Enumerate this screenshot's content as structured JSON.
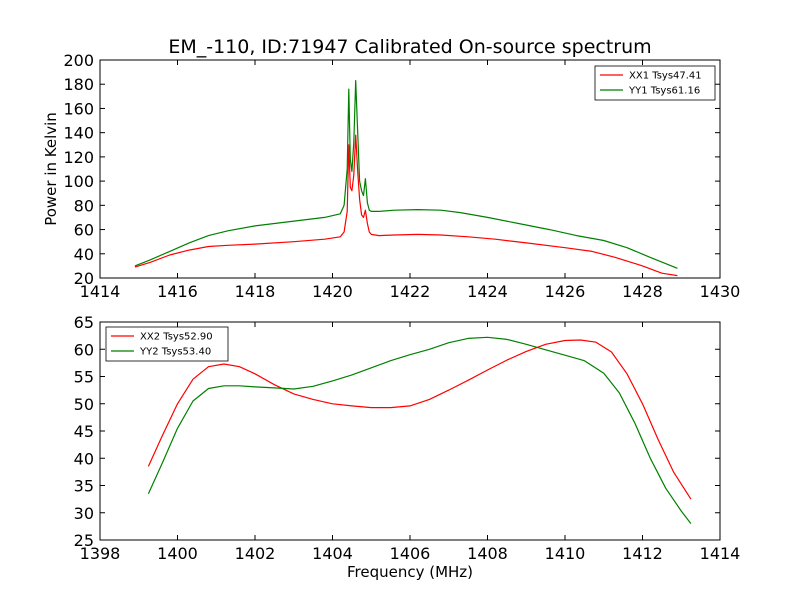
{
  "title": "EM_-110, ID:71947 Calibrated On-source spectrum",
  "colors": {
    "xx": "#ff0000",
    "yy": "#008000",
    "axes": "#000000",
    "background": "#ffffff"
  },
  "chart_data": [
    {
      "type": "line",
      "panel": "top",
      "ylabel": "Power in Kelvin",
      "xlabel": "",
      "xlim": [
        1414,
        1430
      ],
      "ylim": [
        20,
        200
      ],
      "xticks": [
        1414,
        1416,
        1418,
        1420,
        1422,
        1424,
        1426,
        1428,
        1430
      ],
      "yticks": [
        20,
        40,
        60,
        80,
        100,
        120,
        140,
        160,
        180,
        200
      ],
      "xtick_labels": [
        "1414",
        "1416",
        "1418",
        "1420",
        "1422",
        "1424",
        "1426",
        "1428",
        "1430"
      ],
      "ytick_labels": [
        "20",
        "40",
        "60",
        "80",
        "100",
        "120",
        "140",
        "160",
        "180",
        "200"
      ],
      "legend": "top-right",
      "grid": false,
      "series": [
        {
          "name": "XX1 Tsys47.41",
          "color": "#ff0000",
          "x": [
            1414.9,
            1415.3,
            1415.8,
            1416.3,
            1416.8,
            1417.3,
            1418.0,
            1419.0,
            1419.8,
            1420.2,
            1420.3,
            1420.38,
            1420.42,
            1420.46,
            1420.5,
            1420.55,
            1420.6,
            1420.65,
            1420.7,
            1420.75,
            1420.8,
            1420.85,
            1420.9,
            1420.95,
            1421.0,
            1421.2,
            1421.6,
            1422.2,
            1422.8,
            1423.5,
            1424.2,
            1425.0,
            1426.0,
            1426.7,
            1427.3,
            1428.0,
            1428.5,
            1428.9
          ],
          "values": [
            29,
            33,
            39,
            43,
            46,
            47,
            48,
            50,
            52,
            54,
            58,
            75,
            130,
            95,
            92,
            105,
            138,
            108,
            85,
            72,
            70,
            76,
            65,
            58,
            56,
            55,
            55.5,
            56,
            55.5,
            54,
            52,
            49,
            45,
            42,
            37,
            30,
            24,
            22
          ]
        },
        {
          "name": "YY1 Tsys61.16",
          "color": "#008000",
          "x": [
            1414.9,
            1415.3,
            1415.8,
            1416.3,
            1416.8,
            1417.3,
            1418.0,
            1419.0,
            1419.8,
            1420.2,
            1420.3,
            1420.38,
            1420.42,
            1420.46,
            1420.5,
            1420.55,
            1420.6,
            1420.65,
            1420.7,
            1420.75,
            1420.8,
            1420.85,
            1420.9,
            1420.95,
            1421.0,
            1421.2,
            1421.6,
            1422.2,
            1422.8,
            1423.3,
            1424.0,
            1424.8,
            1425.6,
            1426.3,
            1427.0,
            1427.6,
            1428.2,
            1428.9
          ],
          "values": [
            30,
            35,
            42,
            49,
            55,
            59,
            63,
            67,
            70,
            73,
            80,
            110,
            176,
            118,
            108,
            132,
            183,
            140,
            100,
            92,
            88,
            102,
            82,
            76,
            75,
            75,
            76,
            76.5,
            76,
            74,
            70,
            65,
            60,
            55,
            51,
            45,
            37,
            28
          ]
        }
      ]
    },
    {
      "type": "line",
      "panel": "bottom",
      "ylabel": "",
      "xlabel": "Frequency (MHz)",
      "xlim": [
        1398,
        1414
      ],
      "ylim": [
        25,
        65
      ],
      "xticks": [
        1398,
        1400,
        1402,
        1404,
        1406,
        1408,
        1410,
        1412,
        1414
      ],
      "yticks": [
        25,
        30,
        35,
        40,
        45,
        50,
        55,
        60,
        65
      ],
      "xtick_labels": [
        "1398",
        "1400",
        "1402",
        "1404",
        "1406",
        "1408",
        "1410",
        "1412",
        "1414"
      ],
      "ytick_labels": [
        "25",
        "30",
        "35",
        "40",
        "45",
        "50",
        "55",
        "60",
        "65"
      ],
      "legend": "top-left",
      "grid": false,
      "series": [
        {
          "name": "XX2 Tsys52.90",
          "color": "#ff0000",
          "x": [
            1399.25,
            1399.6,
            1400.0,
            1400.4,
            1400.8,
            1401.2,
            1401.6,
            1402.0,
            1402.5,
            1403.0,
            1403.5,
            1404.0,
            1404.5,
            1405.0,
            1405.5,
            1406.0,
            1406.5,
            1407.0,
            1407.5,
            1408.0,
            1408.5,
            1409.0,
            1409.5,
            1410.0,
            1410.4,
            1410.8,
            1411.2,
            1411.6,
            1412.0,
            1412.4,
            1412.8,
            1413.25
          ],
          "values": [
            38.5,
            44,
            50,
            54.5,
            56.8,
            57.3,
            56.8,
            55.5,
            53.5,
            51.8,
            50.8,
            50,
            49.6,
            49.3,
            49.3,
            49.6,
            50.8,
            52.5,
            54.3,
            56.2,
            58,
            59.6,
            60.9,
            61.6,
            61.7,
            61.3,
            59.5,
            55.5,
            50,
            43.5,
            37.5,
            32.5
          ]
        },
        {
          "name": "YY2 Tsys53.40",
          "color": "#008000",
          "x": [
            1399.25,
            1399.6,
            1400.0,
            1400.4,
            1400.8,
            1401.2,
            1401.6,
            1402.0,
            1402.5,
            1403.0,
            1403.5,
            1404.0,
            1404.5,
            1405.0,
            1405.5,
            1406.0,
            1406.5,
            1407.0,
            1407.5,
            1408.0,
            1408.5,
            1409.0,
            1409.5,
            1410.0,
            1410.5,
            1411.0,
            1411.4,
            1411.8,
            1412.2,
            1412.6,
            1413.0,
            1413.25
          ],
          "values": [
            33.5,
            39,
            45.5,
            50.5,
            52.8,
            53.3,
            53.3,
            53.1,
            52.9,
            52.7,
            53.2,
            54.2,
            55.3,
            56.6,
            57.9,
            59,
            60,
            61.2,
            62,
            62.2,
            61.8,
            60.9,
            59.9,
            58.9,
            57.9,
            55.6,
            52,
            46.5,
            40,
            34.5,
            30.3,
            28
          ]
        }
      ]
    }
  ]
}
